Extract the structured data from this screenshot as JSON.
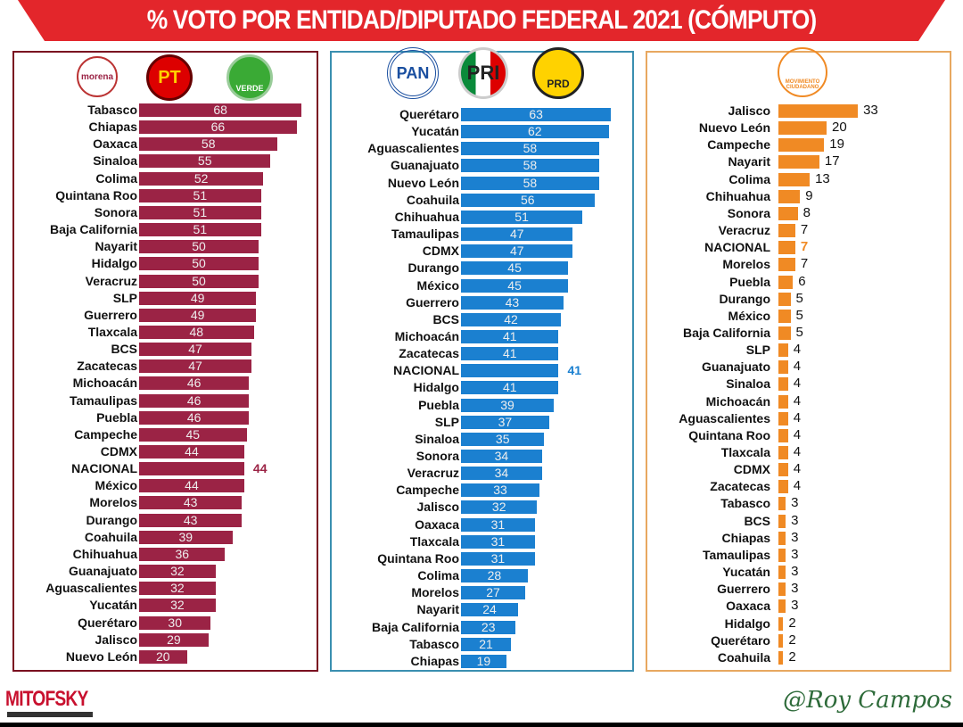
{
  "title": "% VOTO POR ENTIDAD/DIPUTADO FEDERAL 2021 (CÓMPUTO)",
  "footer": {
    "left_logo": "MITOFSKY",
    "signature": "@Roy Campos"
  },
  "colors": {
    "banner": "#e3262b",
    "morena": "#9b2345",
    "pan": "#1b80d0",
    "mc": "#f08a24"
  },
  "logos": {
    "p1": [
      "morena",
      "PT",
      "VERDE"
    ],
    "p2": [
      "PAN",
      "PRI",
      "PRD"
    ],
    "p3": [
      "MOVIMIENTO CIUDADANO"
    ]
  },
  "chart_data": [
    {
      "type": "bar",
      "orientation": "horizontal",
      "title": "morena-PT-VERDE",
      "color": "#9b2345",
      "value_position": "inside",
      "categories": [
        "Tabasco",
        "Chiapas",
        "Oaxaca",
        "Sinaloa",
        "Colima",
        "Quintana Roo",
        "Sonora",
        "Baja California",
        "Nayarit",
        "Hidalgo",
        "Veracruz",
        "SLP",
        "Guerrero",
        "Tlaxcala",
        "BCS",
        "Zacatecas",
        "Michoacán",
        "Tamaulipas",
        "Puebla",
        "Campeche",
        "CDMX",
        "NACIONAL",
        "México",
        "Morelos",
        "Durango",
        "Coahuila",
        "Chihuahua",
        "Guanajuato",
        "Aguascalientes",
        "Yucatán",
        "Querétaro",
        "Jalisco",
        "Nuevo León"
      ],
      "values": [
        68,
        66,
        58,
        55,
        52,
        51,
        51,
        51,
        50,
        50,
        50,
        49,
        49,
        48,
        47,
        47,
        46,
        46,
        46,
        45,
        44,
        44,
        44,
        43,
        43,
        39,
        36,
        32,
        32,
        32,
        30,
        29,
        20
      ],
      "highlight": "NACIONAL"
    },
    {
      "type": "bar",
      "orientation": "horizontal",
      "title": "PAN-PRI-PRD",
      "color": "#1b80d0",
      "value_position": "inside",
      "categories": [
        "Querétaro",
        "Yucatán",
        "Aguascalientes",
        "Guanajuato",
        "Nuevo León",
        "Coahuila",
        "Chihuahua",
        "Tamaulipas",
        "CDMX",
        "Durango",
        "México",
        "Guerrero",
        "BCS",
        "Michoacán",
        "Zacatecas",
        "NACIONAL",
        "Hidalgo",
        "Puebla",
        "SLP",
        "Sinaloa",
        "Sonora",
        "Veracruz",
        "Campeche",
        "Jalisco",
        "Oaxaca",
        "Tlaxcala",
        "Quintana Roo",
        "Colima",
        "Morelos",
        "Nayarit",
        "Baja California",
        "Tabasco",
        "Chiapas"
      ],
      "values": [
        63,
        62,
        58,
        58,
        58,
        56,
        51,
        47,
        47,
        45,
        45,
        43,
        42,
        41,
        41,
        41,
        41,
        39,
        37,
        35,
        34,
        34,
        33,
        32,
        31,
        31,
        31,
        28,
        27,
        24,
        23,
        21,
        19
      ],
      "highlight": "NACIONAL"
    },
    {
      "type": "bar",
      "orientation": "horizontal",
      "title": "Movimiento Ciudadano",
      "color": "#f08a24",
      "value_position": "outside",
      "categories": [
        "Jalisco",
        "Nuevo León",
        "Campeche",
        "Nayarit",
        "Colima",
        "Chihuahua",
        "Sonora",
        "Veracruz",
        "NACIONAL",
        "Morelos",
        "Puebla",
        "Durango",
        "México",
        "Baja California",
        "SLP",
        "Guanajuato",
        "Sinaloa",
        "Michoacán",
        "Aguascalientes",
        "Quintana Roo",
        "Tlaxcala",
        "CDMX",
        "Zacatecas",
        "Tabasco",
        "BCS",
        "Chiapas",
        "Tamaulipas",
        "Yucatán",
        "Guerrero",
        "Oaxaca",
        "Hidalgo",
        "Querétaro",
        "Coahuila"
      ],
      "values": [
        33,
        20,
        19,
        17,
        13,
        9,
        8,
        7,
        7,
        7,
        6,
        5,
        5,
        5,
        4,
        4,
        4,
        4,
        4,
        4,
        4,
        4,
        4,
        3,
        3,
        3,
        3,
        3,
        3,
        3,
        2,
        2,
        2
      ],
      "highlight": "NACIONAL"
    }
  ]
}
